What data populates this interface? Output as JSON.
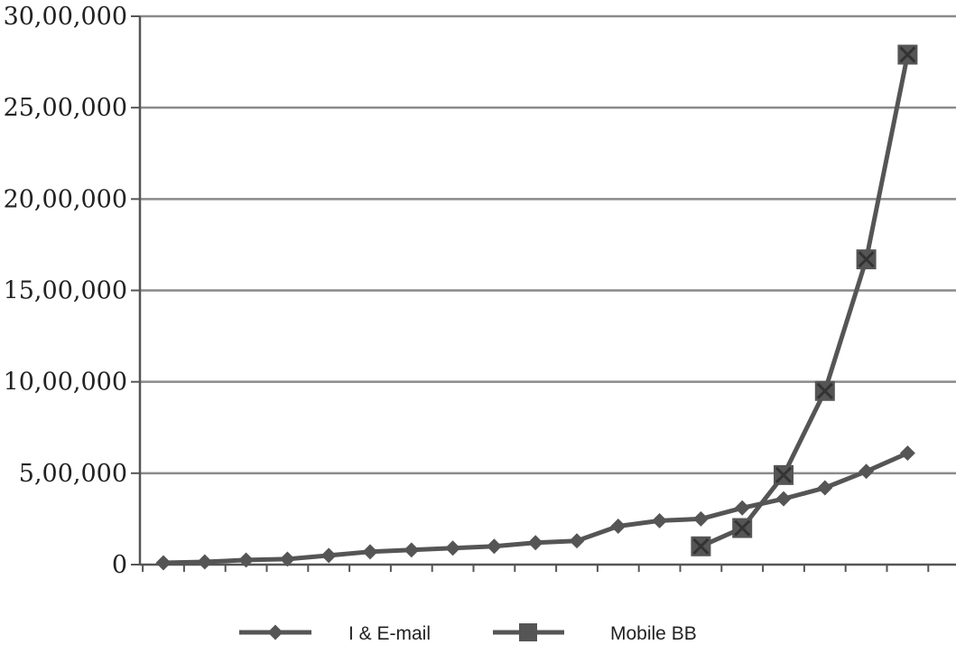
{
  "chart_data": {
    "type": "line",
    "title": "",
    "xlabel": "",
    "ylabel": "",
    "ylim": [
      0,
      3000000
    ],
    "yticks": [
      0,
      500000,
      1000000,
      1500000,
      2000000,
      2500000,
      3000000
    ],
    "ytick_labels": [
      "0",
      "5,00,000",
      "10,00,000",
      "15,00,000",
      "20,00,000",
      "25,00,000",
      "30,00,000"
    ],
    "x_count": 19,
    "grid": "horizontal",
    "legend_position": "bottom",
    "series_color": "#555555",
    "series": [
      {
        "name": "I & E-mail",
        "marker": "diamond",
        "values": [
          10000,
          15000,
          25000,
          30000,
          50000,
          70000,
          80000,
          90000,
          100000,
          120000,
          130000,
          210000,
          240000,
          250000,
          310000,
          360000,
          420000,
          510000,
          610000
        ]
      },
      {
        "name": "Mobile BB",
        "marker": "square",
        "values": [
          null,
          null,
          null,
          null,
          null,
          null,
          null,
          null,
          null,
          null,
          null,
          null,
          null,
          100000,
          200000,
          490000,
          950000,
          1670000,
          2790000
        ]
      }
    ]
  }
}
